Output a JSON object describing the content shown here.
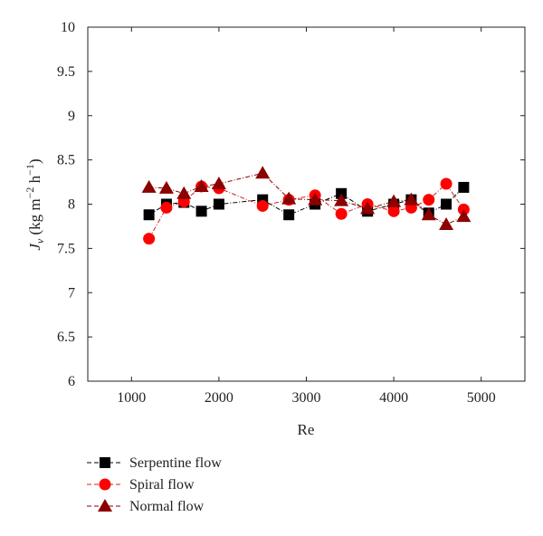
{
  "chart_data": {
    "type": "scatter",
    "title": "",
    "xlabel": "Re",
    "ylabel": "J_v (kg m^-2 h^-1)",
    "ylabel_parts": {
      "symbol": "J",
      "subscript": "v",
      "unit_open": " (kg m",
      "exp1": "−2",
      "unit_mid": " h",
      "exp2": "−1",
      "unit_close": ")"
    },
    "xlim": [
      500,
      5500
    ],
    "ylim": [
      6,
      10
    ],
    "x_ticks": [
      1000,
      2000,
      3000,
      4000,
      5000
    ],
    "x_tick_labels": [
      "1000",
      "2000",
      "3000",
      "4000",
      "5000"
    ],
    "y_ticks": [
      6,
      6.5,
      7,
      7.5,
      8,
      8.5,
      9,
      9.5,
      10
    ],
    "y_tick_labels": [
      "6",
      "6.5",
      "7",
      "7.5",
      "8",
      "8.5",
      "9",
      "9.5",
      "10"
    ],
    "grid": false,
    "legend_position": "bottom-left",
    "series": [
      {
        "name": "Serpentine flow",
        "marker": "square",
        "color": "#000000",
        "line_color": "#000000",
        "x": [
          1200,
          1400,
          1600,
          1800,
          2000,
          2500,
          2800,
          3100,
          3400,
          3700,
          4000,
          4200,
          4400,
          4600,
          4800
        ],
        "y": [
          7.88,
          8.0,
          8.02,
          7.92,
          8.0,
          8.05,
          7.88,
          8.0,
          8.12,
          7.92,
          8.0,
          8.05,
          7.9,
          8.0,
          8.19
        ]
      },
      {
        "name": "Spiral flow",
        "marker": "circle",
        "color": "#ff0000",
        "line_color": "#d42020",
        "x": [
          1200,
          1400,
          1600,
          1800,
          2000,
          2500,
          2800,
          3100,
          3400,
          3700,
          4000,
          4200,
          4400,
          4600,
          4800
        ],
        "y": [
          7.61,
          7.96,
          8.03,
          8.2,
          8.18,
          7.98,
          8.05,
          8.1,
          7.89,
          8.0,
          7.92,
          7.96,
          8.05,
          8.23,
          7.94
        ]
      },
      {
        "name": "Normal flow",
        "marker": "triangle",
        "color": "#8b0000",
        "line_color": "#8b0000",
        "x": [
          1200,
          1400,
          1600,
          1800,
          2000,
          2500,
          2800,
          3100,
          3400,
          3700,
          4000,
          4200,
          4400,
          4600,
          4800
        ],
        "y": [
          8.19,
          8.18,
          8.12,
          8.2,
          8.23,
          8.35,
          8.06,
          8.05,
          8.04,
          7.95,
          8.03,
          8.05,
          7.88,
          7.77,
          7.86
        ]
      }
    ]
  }
}
